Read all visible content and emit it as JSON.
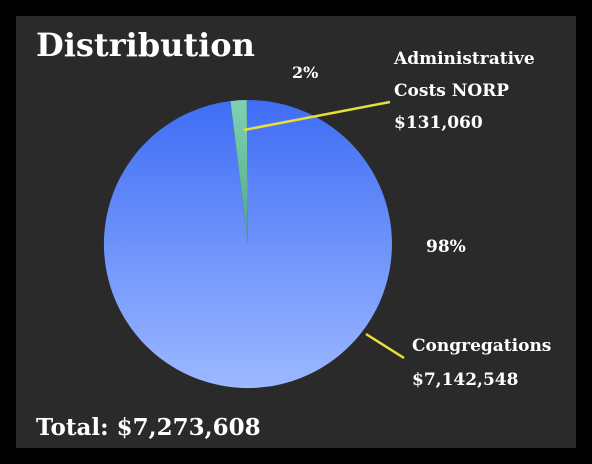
{
  "title": "Distribution",
  "total_label": "Total: $7,273,608",
  "colors": {
    "background": "#2a2a2a",
    "congregations_top": "#3f6df5",
    "congregations_bottom": "#9cb8ff",
    "administrative_top": "#7fd3b3",
    "administrative_bottom": "#4ea583",
    "leader_line": "#e8df3a"
  },
  "chart_data": {
    "type": "pie",
    "title": "Distribution",
    "slices": [
      {
        "name_lines": [
          "Administrative",
          "Costs NORP"
        ],
        "amount": "$131,060",
        "value": 131060,
        "percent_label": "2%"
      },
      {
        "name_lines": [
          "Congregations"
        ],
        "amount": "$7,142,548",
        "value": 7142548,
        "percent_label": "98%"
      }
    ],
    "total": 7273608
  }
}
